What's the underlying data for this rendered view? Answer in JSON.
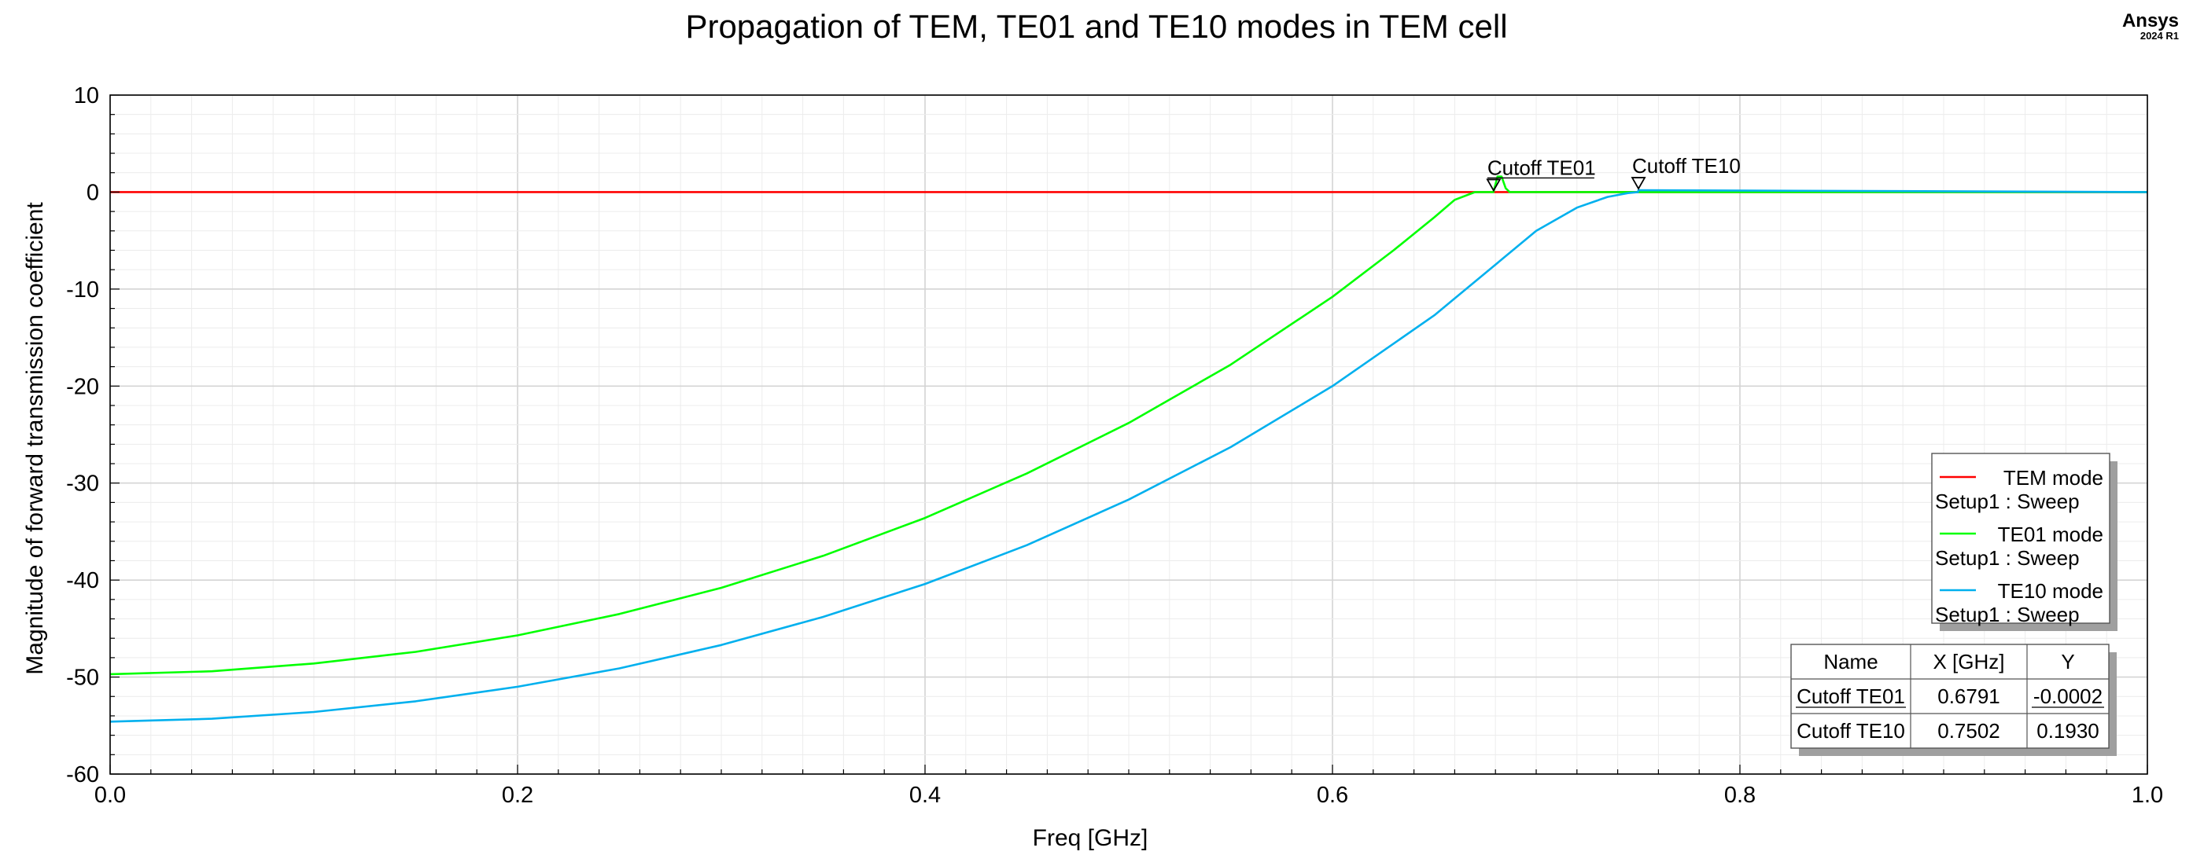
{
  "brand": {
    "name": "Ansys",
    "version": "2024 R1"
  },
  "chart_data": {
    "type": "line",
    "title": "Propagation of TEM, TE01 and TE10 modes in TEM cell",
    "xlabel": "Freq [GHz]",
    "ylabel": "Magnitude of forward transmission coefficient",
    "xlim": [
      0,
      1
    ],
    "ylim": [
      -60,
      10
    ],
    "xticks": [
      0.0,
      0.2,
      0.4,
      0.6,
      0.8,
      1.0
    ],
    "xtick_labels": [
      "0.0",
      "0.2",
      "0.4",
      "0.6",
      "0.8",
      "1.0"
    ],
    "yticks": [
      -60,
      -50,
      -40,
      -30,
      -20,
      -10,
      0,
      10
    ],
    "ytick_labels": [
      "-60",
      "-50",
      "-40",
      "-30",
      "-20",
      "-10",
      "0",
      "10"
    ],
    "grid": true,
    "legend_position": "right",
    "series": [
      {
        "name": "TEM mode",
        "sub": "Setup1 : Sweep",
        "color": "#ff0000",
        "x": [
          0,
          1
        ],
        "y": [
          0,
          0
        ]
      },
      {
        "name": "TE01 mode",
        "sub": "Setup1 : Sweep",
        "color": "#00ff00",
        "x": [
          0,
          0.05,
          0.1,
          0.15,
          0.2,
          0.25,
          0.3,
          0.35,
          0.4,
          0.45,
          0.5,
          0.55,
          0.6,
          0.63,
          0.65,
          0.66,
          0.67,
          0.675,
          0.679,
          0.681,
          0.683,
          0.685,
          0.687,
          0.69,
          1
        ],
        "y": [
          -49.7,
          -49.4,
          -48.6,
          -47.4,
          -45.7,
          -43.5,
          -40.8,
          -37.5,
          -33.6,
          -29.0,
          -23.8,
          -17.8,
          -10.8,
          -6.0,
          -2.6,
          -0.8,
          0.0,
          0.0,
          0.0,
          1.6,
          1.6,
          0.4,
          0.0,
          0.0,
          0.0
        ]
      },
      {
        "name": "TE10 mode",
        "sub": "Setup1 : Sweep",
        "color": "#00b0ee",
        "x": [
          0,
          0.05,
          0.1,
          0.15,
          0.2,
          0.25,
          0.3,
          0.35,
          0.4,
          0.45,
          0.5,
          0.55,
          0.6,
          0.65,
          0.7,
          0.72,
          0.735,
          0.745,
          0.75,
          0.7502,
          1
        ],
        "y": [
          -54.6,
          -54.3,
          -53.6,
          -52.5,
          -51.0,
          -49.1,
          -46.7,
          -43.8,
          -40.4,
          -36.4,
          -31.7,
          -26.3,
          -20.0,
          -12.7,
          -4.0,
          -1.6,
          -0.5,
          -0.1,
          0.0,
          0.193,
          0.0
        ]
      }
    ],
    "markers": [
      {
        "name": "Cutoff TE01",
        "x": 0.6791,
        "y": -0.0002
      },
      {
        "name": "Cutoff TE10",
        "x": 0.7502,
        "y": 0.193
      }
    ],
    "marker_table": {
      "headers": [
        "Name",
        "X [GHz]",
        "Y"
      ],
      "rows": [
        [
          "Cutoff TE01",
          "0.6791",
          "-0.0002"
        ],
        [
          "Cutoff TE10",
          "0.7502",
          "0.1930"
        ]
      ]
    }
  }
}
